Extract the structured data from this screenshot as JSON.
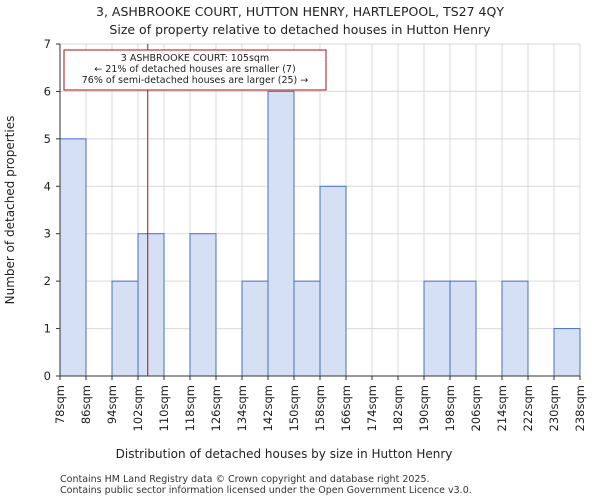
{
  "chart_data": {
    "type": "bar",
    "title": "3, ASHBROOKE COURT, HUTTON HENRY, HARTLEPOOL, TS27 4QY",
    "subtitle": "Size of property relative to detached houses in Hutton Henry",
    "xlabel": "Distribution of detached houses by size in Hutton Henry",
    "ylabel": "Number of detached properties",
    "bin_edges": [
      78,
      86,
      94,
      102,
      110,
      118,
      126,
      134,
      142,
      150,
      158,
      166,
      174,
      182,
      190,
      198,
      206,
      214,
      222,
      230,
      238
    ],
    "tick_labels": [
      "78sqm",
      "86sqm",
      "94sqm",
      "102sqm",
      "110sqm",
      "118sqm",
      "126sqm",
      "134sqm",
      "142sqm",
      "150sqm",
      "158sqm",
      "166sqm",
      "174sqm",
      "182sqm",
      "190sqm",
      "198sqm",
      "206sqm",
      "214sqm",
      "222sqm",
      "230sqm",
      "238sqm"
    ],
    "values": [
      5,
      0,
      2,
      3,
      0,
      3,
      0,
      2,
      6,
      2,
      4,
      0,
      0,
      0,
      2,
      2,
      0,
      2,
      0,
      1
    ],
    "ylim": [
      0,
      7
    ],
    "yticks": [
      0,
      1,
      2,
      3,
      4,
      5,
      6,
      7
    ],
    "grid": true,
    "marker": {
      "value": 105,
      "color": "#aa1111"
    },
    "annotation": {
      "lines": [
        "3 ASHBROOKE COURT: 105sqm",
        "← 21% of detached houses are smaller (7)",
        "76% of semi-detached houses are larger (25) →"
      ],
      "border_color": "#aa1111"
    },
    "colors": {
      "bar_fill": "#d6e0f5",
      "bar_stroke": "#4472c4",
      "grid": "#d9d9d9"
    }
  },
  "footer": {
    "line1": "Contains HM Land Registry data © Crown copyright and database right 2025.",
    "line2": "Contains public sector information licensed under the Open Government Licence v3.0."
  }
}
